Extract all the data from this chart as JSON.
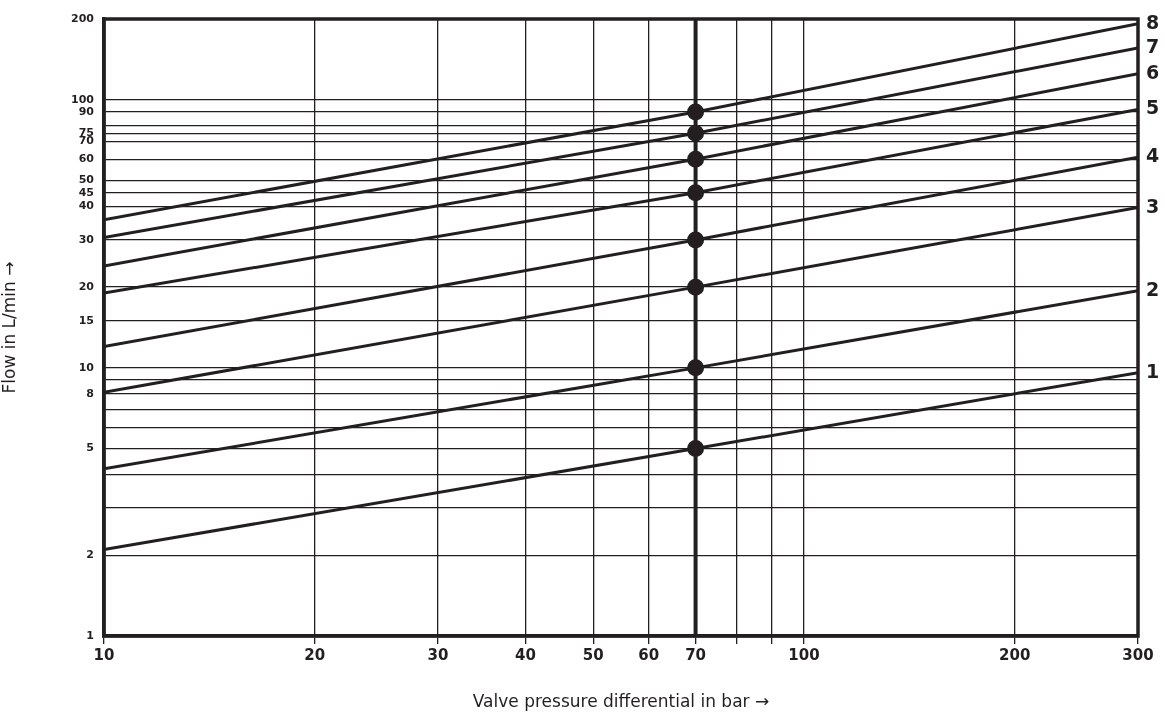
{
  "chart_data": {
    "type": "line",
    "xlabel": "Valve pressure differential in bar →",
    "ylabel": "Flow in L/min →",
    "log": "xy",
    "grid": true,
    "legend": false,
    "marker": "none",
    "line_style": "solid",
    "xlim": [
      10,
      300
    ],
    "ylim": [
      1,
      200
    ],
    "xticks": [
      10,
      20,
      30,
      40,
      50,
      60,
      70,
      {
        "value": 80,
        "label": null
      },
      {
        "value": 90,
        "label": null
      },
      100,
      200,
      300
    ],
    "yticks": [
      1,
      2,
      {
        "value": 3,
        "label": null
      },
      {
        "value": 4,
        "label": null
      },
      5,
      {
        "value": 6,
        "label": null
      },
      {
        "value": 7,
        "label": null
      },
      8,
      {
        "value": 9,
        "label": null
      },
      10,
      15,
      20,
      30,
      40,
      45,
      50,
      60,
      70,
      75,
      {
        "value": 80,
        "label": null
      },
      90,
      100,
      200
    ],
    "ref_lines": [
      {
        "axis": "x",
        "value": 70,
        "color": "#231f20"
      }
    ],
    "series": [
      {
        "name": "1",
        "color": "#231f20",
        "x": [
          10,
          70,
          300
        ],
        "values": [
          2.1,
          5,
          9.6
        ]
      },
      {
        "name": "2",
        "color": "#231f20",
        "x": [
          10,
          70,
          300
        ],
        "values": [
          4.2,
          10,
          19.4
        ]
      },
      {
        "name": "3",
        "color": "#231f20",
        "x": [
          10,
          70,
          300
        ],
        "values": [
          8.1,
          20,
          39.6
        ]
      },
      {
        "name": "4",
        "color": "#231f20",
        "x": [
          10,
          70,
          300
        ],
        "values": [
          12,
          30,
          61
        ]
      },
      {
        "name": "5",
        "color": "#231f20",
        "x": [
          10,
          70,
          300
        ],
        "values": [
          19,
          45,
          92
        ]
      },
      {
        "name": "6",
        "color": "#231f20",
        "x": [
          10,
          70,
          300
        ],
        "values": [
          24,
          60,
          125
        ]
      },
      {
        "name": "7",
        "color": "#231f20",
        "x": [
          10,
          70,
          300
        ],
        "values": [
          30.6,
          75,
          156
        ]
      },
      {
        "name": "8",
        "color": "#231f20",
        "x": [
          10,
          70,
          300
        ],
        "values": [
          35.7,
          90,
          192
        ]
      },
      {
        "type": "scatter",
        "marker": "circle",
        "color": "#231f20",
        "x": [
          70,
          70,
          70,
          70,
          70,
          70,
          70,
          70
        ],
        "values": [
          5,
          10,
          20,
          30,
          45,
          60,
          75,
          90
        ]
      }
    ]
  }
}
